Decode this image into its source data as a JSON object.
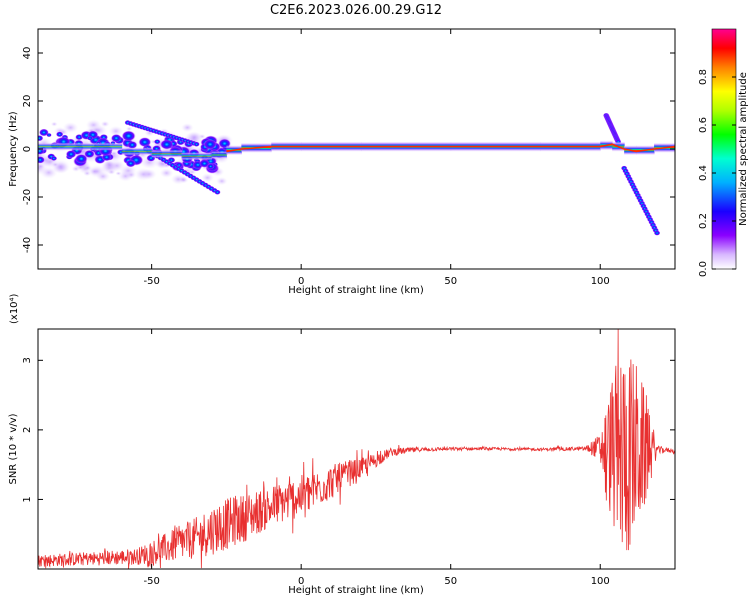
{
  "figure": {
    "title": "C2E6.2023.026.00.29.G12"
  },
  "chart_data": [
    {
      "type": "heatmap",
      "xlabel": "Height of straight line (km)",
      "ylabel": "Frequency (Hz)",
      "xlim": [
        -88,
        125
      ],
      "ylim": [
        -50,
        50
      ],
      "x_ticks": [
        -50,
        0,
        50,
        100
      ],
      "y_ticks": [
        -40,
        -20,
        0,
        20,
        40
      ],
      "colorbar": {
        "label": "Normalized spectral amplitude",
        "range": [
          0,
          1
        ],
        "ticks": [
          0.0,
          0.2,
          0.4,
          0.6,
          0.8
        ],
        "tick_labels": [
          "0.0",
          "0.2",
          "0.4",
          "0.6",
          "0.8"
        ],
        "colormap": [
          "#ffffff",
          "#8a00ff",
          "#0000ff",
          "#00ffff",
          "#00ff00",
          "#ffff00",
          "#ff8000",
          "#ff0000",
          "#ff00aa"
        ]
      },
      "tone_track": [
        [
          -88,
          0
        ],
        [
          -70,
          2
        ],
        [
          -60,
          0
        ],
        [
          -50,
          -2
        ],
        [
          -40,
          -2
        ],
        [
          -30,
          -4
        ],
        [
          -25,
          -1
        ],
        [
          -20,
          0
        ],
        [
          -10,
          1
        ],
        [
          0,
          1
        ],
        [
          20,
          1
        ],
        [
          50,
          1
        ],
        [
          80,
          1
        ],
        [
          100,
          1
        ],
        [
          104,
          2
        ],
        [
          108,
          0
        ],
        [
          112,
          -1
        ],
        [
          118,
          0
        ],
        [
          125,
          1
        ]
      ],
      "scatter_region": {
        "x": [
          -88,
          -25
        ],
        "y": [
          -20,
          12
        ]
      },
      "drift_lines": [
        {
          "x": [
            -58,
            -35
          ],
          "y": [
            11,
            2
          ]
        },
        {
          "x": [
            -52,
            -28
          ],
          "y": [
            0,
            -18
          ]
        },
        {
          "x": [
            108,
            119
          ],
          "y": [
            -8,
            -35
          ]
        },
        {
          "x": [
            102,
            106
          ],
          "y": [
            14,
            3
          ]
        }
      ]
    },
    {
      "type": "line",
      "xlabel": "Height of straight line (km)",
      "ylabel": "SNR (10 * v/v)",
      "y_multiplier": "(x10⁴)",
      "xlim": [
        -88,
        125
      ],
      "ylim": [
        0,
        3.45
      ],
      "x_ticks": [
        -50,
        0,
        50,
        100
      ],
      "y_ticks": [
        1,
        2,
        3
      ],
      "color": "#e83030",
      "envelope": [
        {
          "x": -88,
          "mid": 0.12,
          "amp": 0.09
        },
        {
          "x": -70,
          "mid": 0.15,
          "amp": 0.1
        },
        {
          "x": -55,
          "mid": 0.18,
          "amp": 0.12
        },
        {
          "x": -45,
          "mid": 0.3,
          "amp": 0.22
        },
        {
          "x": -35,
          "mid": 0.45,
          "amp": 0.3
        },
        {
          "x": -28,
          "mid": 0.6,
          "amp": 0.38
        },
        {
          "x": -20,
          "mid": 0.72,
          "amp": 0.35
        },
        {
          "x": -10,
          "mid": 0.9,
          "amp": 0.3
        },
        {
          "x": 0,
          "mid": 1.05,
          "amp": 0.3
        },
        {
          "x": 10,
          "mid": 1.25,
          "amp": 0.25
        },
        {
          "x": 20,
          "mid": 1.45,
          "amp": 0.15
        },
        {
          "x": 30,
          "mid": 1.68,
          "amp": 0.06
        },
        {
          "x": 40,
          "mid": 1.72,
          "amp": 0.03
        },
        {
          "x": 60,
          "mid": 1.73,
          "amp": 0.02
        },
        {
          "x": 80,
          "mid": 1.72,
          "amp": 0.02
        },
        {
          "x": 95,
          "mid": 1.73,
          "amp": 0.03
        },
        {
          "x": 100,
          "mid": 1.75,
          "amp": 0.2
        },
        {
          "x": 104,
          "mid": 1.7,
          "amp": 1.1
        },
        {
          "x": 108,
          "mid": 1.65,
          "amp": 1.6
        },
        {
          "x": 112,
          "mid": 1.7,
          "amp": 1.3
        },
        {
          "x": 116,
          "mid": 1.72,
          "amp": 0.7
        },
        {
          "x": 119,
          "mid": 1.72,
          "amp": 0.05
        },
        {
          "x": 125,
          "mid": 1.7,
          "amp": 0.03
        }
      ]
    }
  ]
}
